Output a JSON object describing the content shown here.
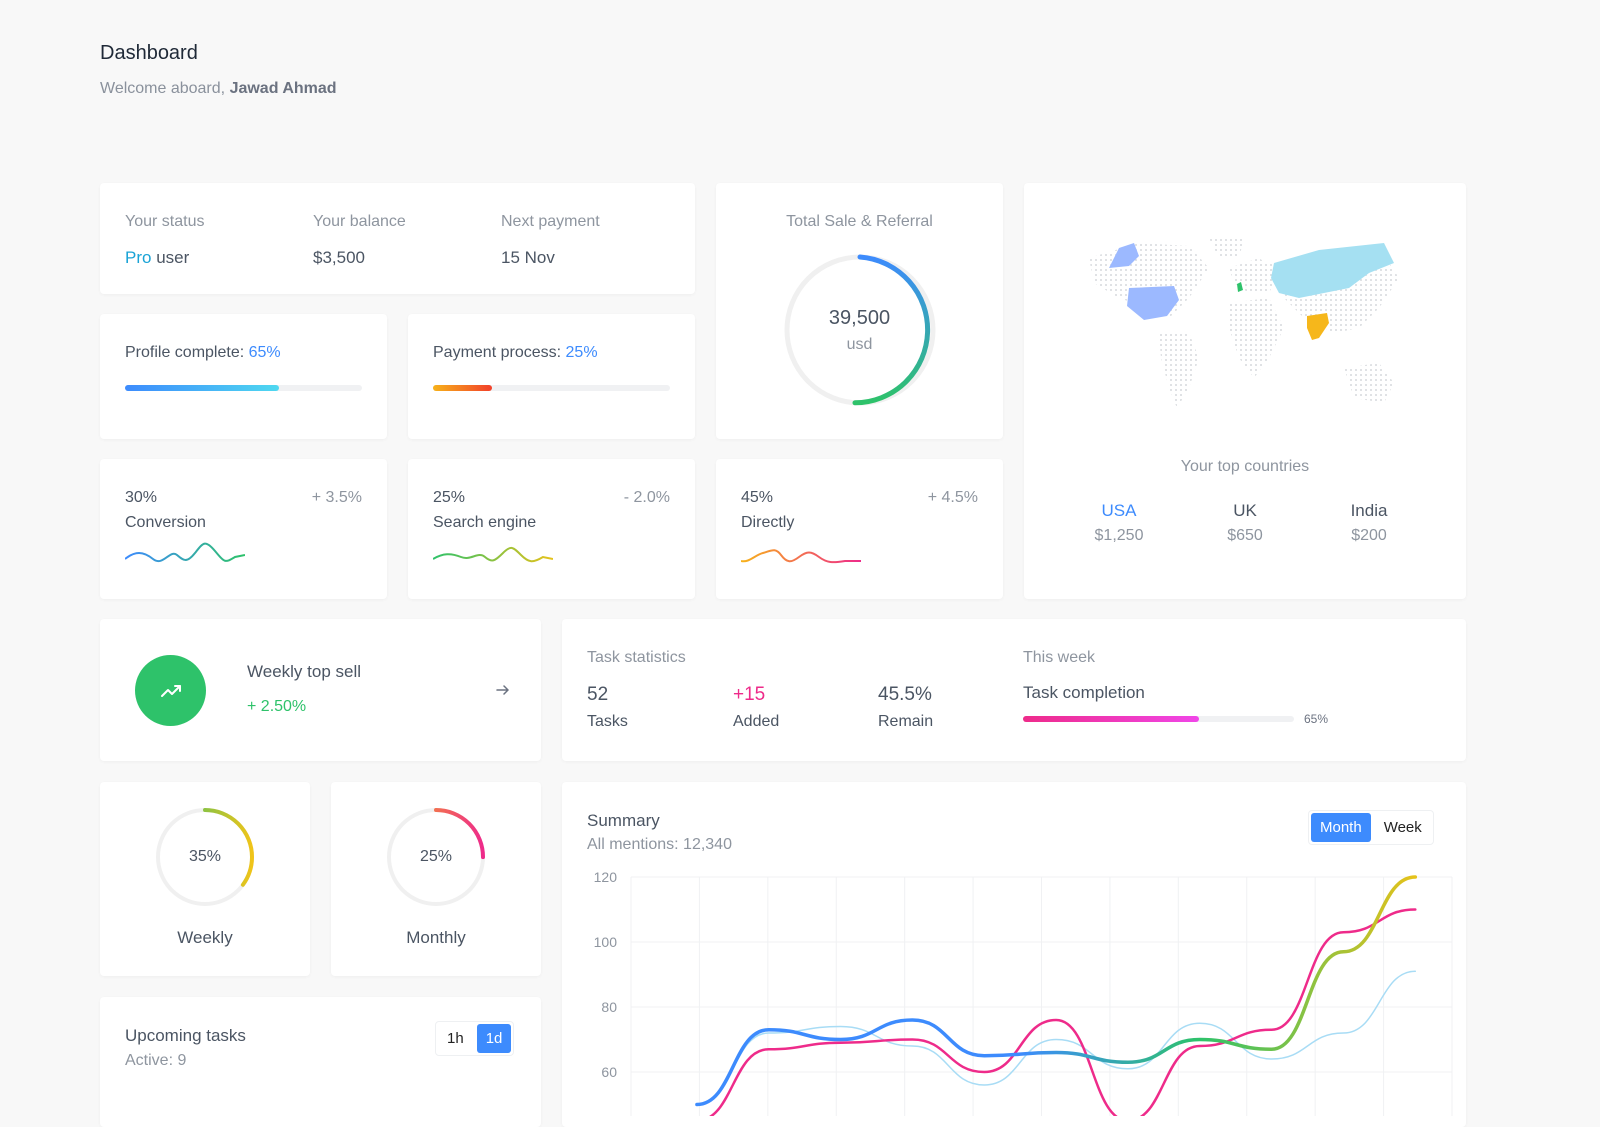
{
  "header": {
    "title": "Dashboard",
    "welcome_prefix": "Welcome aboard,",
    "user_name": "Jawad Ahmad"
  },
  "status": {
    "status_label": "Your status",
    "status_pro": "Pro",
    "status_user": "user",
    "balance_label": "Your balance",
    "balance_value": "$3,500",
    "payment_label": "Next payment",
    "payment_value": "15 Nov"
  },
  "profile": {
    "label": "Profile complete:",
    "value": "65%",
    "fraction": 0.65
  },
  "payment_process": {
    "label": "Payment process:",
    "value": "25%",
    "fraction": 0.25
  },
  "total_sale": {
    "title": "Total Sale & Referral",
    "value": "39,500",
    "unit": "usd"
  },
  "countries": {
    "title": "Your top countries",
    "items": [
      {
        "name": "USA",
        "value": "$1,250",
        "color": "#3d8bfd"
      },
      {
        "name": "UK",
        "value": "$650",
        "color": "#4b5563"
      },
      {
        "name": "India",
        "value": "$200",
        "color": "#4b5563"
      }
    ]
  },
  "stats": [
    {
      "percent": "30%",
      "name": "Conversion",
      "change": "+ 3.5%"
    },
    {
      "percent": "25%",
      "name": "Search engine",
      "change": "- 2.0%"
    },
    {
      "percent": "45%",
      "name": "Directly",
      "change": "+ 4.5%"
    }
  ],
  "weekly_top": {
    "title": "Weekly top sell",
    "change": "+ 2.50%"
  },
  "task_stats": {
    "title": "Task statistics",
    "tasks_value": "52",
    "tasks_label": "Tasks",
    "added_value": "+15",
    "added_label": "Added",
    "remain_value": "45.5%",
    "remain_label": "Remain",
    "week_label": "This week",
    "completion_label": "Task completion",
    "completion_value": "65%",
    "completion_fraction": 0.65
  },
  "rings": [
    {
      "value": "35%",
      "label": "Weekly",
      "fraction": 0.35
    },
    {
      "value": "25%",
      "label": "Monthly",
      "fraction": 0.25
    }
  ],
  "upcoming": {
    "title": "Upcoming tasks",
    "active": "Active: 9",
    "btn_1h": "1h",
    "btn_1d": "1d"
  },
  "summary": {
    "title": "Summary",
    "mentions": "All mentions: 12,340",
    "btn_month": "Month",
    "btn_week": "Week"
  },
  "colors": {
    "accent": "#3d8bfd",
    "green": "#2ec26a",
    "pink": "#ee2b8a"
  },
  "chart_data": {
    "type": "line",
    "title": "",
    "xlabel": "",
    "ylabel": "",
    "ylim": [
      56,
      122
    ],
    "yticks": [
      120,
      100,
      80,
      60
    ],
    "grid": true,
    "x": [
      0,
      1,
      2,
      3,
      4,
      5,
      6,
      7,
      8,
      9,
      10,
      11
    ],
    "series": [
      {
        "color": "gradient-blue-green-yellow",
        "values": [
          50,
          73,
          70,
          76,
          65,
          66,
          63,
          70,
          67,
          97,
          120,
          120
        ],
        "visible_points": 11
      },
      {
        "color": "#ee2b8a",
        "values": [
          45,
          67,
          69,
          70,
          60,
          76,
          45,
          68,
          73,
          103,
          110,
          110
        ],
        "visible_points": 11
      },
      {
        "color": "#a8dcf5",
        "values": [
          50,
          72,
          74,
          68,
          56,
          70,
          61,
          75,
          64,
          72,
          91,
          91
        ],
        "visible_points": 11
      }
    ]
  }
}
